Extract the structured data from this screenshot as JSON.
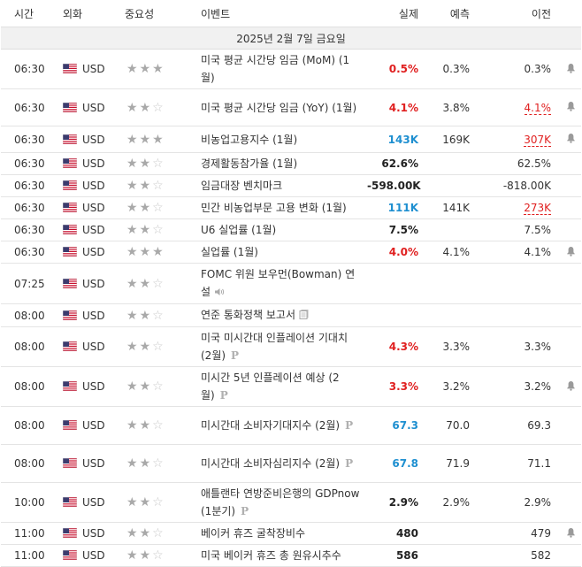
{
  "header": {
    "time": "시간",
    "currency": "외화",
    "importance": "중요성",
    "event": "이벤트",
    "actual": "실제",
    "forecast": "예측",
    "previous": "이전"
  },
  "date_label": "2025년 2월 7일 금요일",
  "rows": [
    {
      "time": "06:30",
      "currency": "USD",
      "stars": 3,
      "event": "미국 평균 시간당 임금 (MoM) (1월)",
      "actual": "0.5%",
      "actual_color": "red",
      "forecast": "0.3%",
      "previous": "0.3%",
      "previous_style": "normal",
      "bell": true,
      "icon": ""
    },
    {
      "time": "06:30",
      "currency": "USD",
      "stars": 2,
      "event": "미국 평균 시간당 임금 (YoY) (1월)",
      "actual": "4.1%",
      "actual_color": "red",
      "forecast": "3.8%",
      "previous": "4.1%",
      "previous_style": "red",
      "bell": true,
      "icon": ""
    },
    {
      "time": "06:30",
      "currency": "USD",
      "stars": 3,
      "event": "비농업고용지수 (1월)",
      "actual": "143K",
      "actual_color": "blue",
      "forecast": "169K",
      "previous": "307K",
      "previous_style": "red",
      "bell": true,
      "icon": ""
    },
    {
      "time": "06:30",
      "currency": "USD",
      "stars": 2,
      "event": "경제활동참가율 (1월)",
      "actual": "62.6%",
      "actual_color": "black",
      "forecast": "",
      "previous": "62.5%",
      "previous_style": "normal",
      "bell": false,
      "icon": ""
    },
    {
      "time": "06:30",
      "currency": "USD",
      "stars": 2,
      "event": "임금대장 벤치마크",
      "actual": "-598.00K",
      "actual_color": "black",
      "forecast": "",
      "previous": "-818.00K",
      "previous_style": "normal",
      "bell": false,
      "icon": ""
    },
    {
      "time": "06:30",
      "currency": "USD",
      "stars": 2,
      "event": "민간 비농업부문 고용 변화 (1월)",
      "actual": "111K",
      "actual_color": "blue",
      "forecast": "141K",
      "previous": "273K",
      "previous_style": "red",
      "bell": false,
      "icon": ""
    },
    {
      "time": "06:30",
      "currency": "USD",
      "stars": 2,
      "event": "U6 실업률 (1월)",
      "actual": "7.5%",
      "actual_color": "black",
      "forecast": "",
      "previous": "7.5%",
      "previous_style": "normal",
      "bell": false,
      "icon": ""
    },
    {
      "time": "06:30",
      "currency": "USD",
      "stars": 3,
      "event": "실업률 (1월)",
      "actual": "4.0%",
      "actual_color": "red",
      "forecast": "4.1%",
      "previous": "4.1%",
      "previous_style": "normal",
      "bell": true,
      "icon": ""
    },
    {
      "time": "07:25",
      "currency": "USD",
      "stars": 2,
      "event": "FOMC 위원 보우먼(Bowman) 연설",
      "actual": "",
      "actual_color": "black",
      "forecast": "",
      "previous": "",
      "previous_style": "normal",
      "bell": false,
      "icon": "speaker"
    },
    {
      "time": "08:00",
      "currency": "USD",
      "stars": 2,
      "event": "연준 통화정책 보고서",
      "actual": "",
      "actual_color": "black",
      "forecast": "",
      "previous": "",
      "previous_style": "normal",
      "bell": false,
      "icon": "report"
    },
    {
      "time": "08:00",
      "currency": "USD",
      "stars": 2,
      "event": "미국 미시간대 인플레이션 기대치 (2월)",
      "actual": "4.3%",
      "actual_color": "red",
      "forecast": "3.3%",
      "previous": "3.3%",
      "previous_style": "normal",
      "bell": false,
      "icon": "p"
    },
    {
      "time": "08:00",
      "currency": "USD",
      "stars": 2,
      "event": "미시간 5년 인플레이션 예상 (2월)",
      "actual": "3.3%",
      "actual_color": "red",
      "forecast": "3.2%",
      "previous": "3.2%",
      "previous_style": "normal",
      "bell": true,
      "icon": "p"
    },
    {
      "time": "08:00",
      "currency": "USD",
      "stars": 2,
      "event": "미시간대 소비자기대지수 (2월)",
      "actual": "67.3",
      "actual_color": "blue",
      "forecast": "70.0",
      "previous": "69.3",
      "previous_style": "normal",
      "bell": false,
      "icon": "p"
    },
    {
      "time": "08:00",
      "currency": "USD",
      "stars": 2,
      "event": "미시간대 소비자심리지수 (2월)",
      "actual": "67.8",
      "actual_color": "blue",
      "forecast": "71.9",
      "previous": "71.1",
      "previous_style": "normal",
      "bell": false,
      "icon": "p"
    },
    {
      "time": "10:00",
      "currency": "USD",
      "stars": 2,
      "event": "애틀랜타 연방준비은행의 GDPnow (1분기)",
      "actual": "2.9%",
      "actual_color": "black",
      "forecast": "2.9%",
      "previous": "2.9%",
      "previous_style": "normal",
      "bell": false,
      "icon": "p"
    },
    {
      "time": "11:00",
      "currency": "USD",
      "stars": 2,
      "event": "베이커 휴즈 굴착장비수",
      "actual": "480",
      "actual_color": "black",
      "forecast": "",
      "previous": "479",
      "previous_style": "normal",
      "bell": true,
      "icon": ""
    },
    {
      "time": "11:00",
      "currency": "USD",
      "stars": 2,
      "event": "미국 베이커 휴즈 총 원유시추수",
      "actual": "586",
      "actual_color": "black",
      "forecast": "",
      "previous": "582",
      "previous_style": "normal",
      "bell": false,
      "icon": ""
    }
  ],
  "icons": {
    "flag": "us-flag-icon",
    "star": "star-icon",
    "bell": "bell-icon",
    "speaker": "speaker-icon",
    "report": "document-icon",
    "p": "preliminary-icon"
  },
  "colors": {
    "red": "#e02020",
    "blue": "#1e8fd0",
    "star_on": "#a9a9a9",
    "star_off": "#c8c8c8"
  }
}
